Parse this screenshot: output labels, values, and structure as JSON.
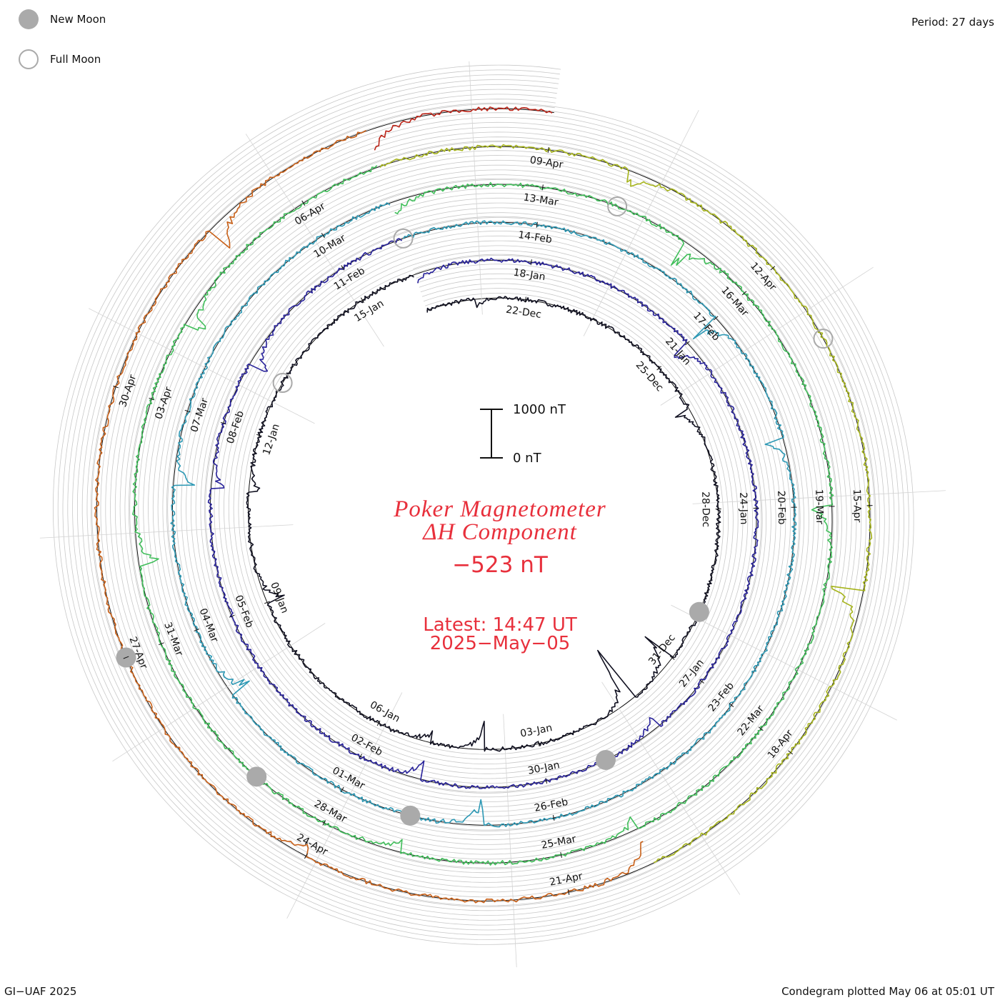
{
  "period_label": "Period: 27 days",
  "legend": {
    "new_moon": "New Moon",
    "full_moon": "Full Moon",
    "new_moon_color": "#aaaaaa",
    "full_moon_color": "#aaaaaa"
  },
  "title": {
    "line1": "Poker Magnetometer",
    "line2": "ΔH Component",
    "value": "−523 nT",
    "latest": "Latest: 14:47 UT",
    "date": "2025−May−05",
    "color": "#e8303c"
  },
  "scale_bar": {
    "top_label": "1000 nT",
    "bottom_label": "0 nT"
  },
  "footer": {
    "left": "GI−UAF 2025",
    "right": "Condegram plotted May 06 at 05:01 UT"
  },
  "chart_data": {
    "type": "line",
    "style": "condegram spiral",
    "period_days": 27,
    "start_date": "2024-12-20",
    "latest_date": "2025-05-05",
    "latest_time": "14:47 UT",
    "latest_value_nT": -523,
    "units": "nT",
    "scale_nT": 1000,
    "grid": true,
    "date_ticks": [
      "22-Dec",
      "25-Dec",
      "28-Dec",
      "31-Dec",
      "03-Jan",
      "06-Jan",
      "09-Jan",
      "12-Jan",
      "15-Jan",
      "18-Jan",
      "21-Jan",
      "24-Jan",
      "27-Jan",
      "30-Jan",
      "02-Feb",
      "05-Feb",
      "08-Feb",
      "11-Feb",
      "14-Feb",
      "17-Feb",
      "20-Feb",
      "23-Feb",
      "26-Feb",
      "01-Mar",
      "04-Mar",
      "07-Mar",
      "10-Mar",
      "13-Mar",
      "16-Mar",
      "19-Mar",
      "22-Mar",
      "25-Mar",
      "28-Mar",
      "31-Mar",
      "03-Apr",
      "06-Apr",
      "09-Apr",
      "12-Apr",
      "15-Apr",
      "18-Apr",
      "21-Apr",
      "24-Apr",
      "27-Apr",
      "30-Apr"
    ],
    "new_moon_dates": [
      "2024-12-30",
      "2025-01-29",
      "2025-02-28",
      "2025-03-29",
      "2025-04-27"
    ],
    "full_moon_dates": [
      "2025-01-13",
      "2025-02-12",
      "2025-03-14",
      "2025-04-13"
    ],
    "series": [
      {
        "color": "#101020",
        "day_range": [
          0,
          27
        ]
      },
      {
        "color": "#28229a",
        "day_range": [
          27,
          54
        ]
      },
      {
        "color": "#2c98b4",
        "day_range": [
          54,
          81
        ]
      },
      {
        "color": "#40be5a",
        "day_range": [
          81,
          108
        ]
      },
      {
        "color": "#a6b41c",
        "day_range": [
          108,
          121
        ]
      },
      {
        "color": "#c86018",
        "day_range": [
          121,
          135
        ]
      },
      {
        "color": "#bb2418",
        "day_range": [
          135,
          137
        ]
      }
    ],
    "disturbances": [
      {
        "date": "2024-12-21",
        "min_nT": -200
      },
      {
        "date": "2024-12-26",
        "min_nT": -300
      },
      {
        "date": "2024-12-31",
        "min_nT": -700
      },
      {
        "date": "2025-01-01",
        "min_nT": -1400
      },
      {
        "date": "2025-01-04",
        "min_nT": -600
      },
      {
        "date": "2025-01-05",
        "min_nT": -300
      },
      {
        "date": "2025-01-09",
        "min_nT": -400
      },
      {
        "date": "2025-01-11",
        "min_nT": -300
      },
      {
        "date": "2025-01-16",
        "min_nT": -200
      },
      {
        "date": "2025-01-21",
        "min_nT": -500
      },
      {
        "date": "2025-01-28",
        "min_nT": -300
      },
      {
        "date": "2025-02-01",
        "min_nT": -400
      },
      {
        "date": "2025-02-07",
        "min_nT": -300
      },
      {
        "date": "2025-02-09",
        "min_nT": -500
      },
      {
        "date": "2025-02-17",
        "min_nT": -600
      },
      {
        "date": "2025-02-19",
        "min_nT": -400
      },
      {
        "date": "2025-02-27",
        "min_nT": -600
      },
      {
        "date": "2025-03-03",
        "min_nT": -500
      },
      {
        "date": "2025-03-06",
        "min_nT": -400
      },
      {
        "date": "2025-03-11",
        "min_nT": -400
      },
      {
        "date": "2025-03-15",
        "min_nT": -700
      },
      {
        "date": "2025-03-19",
        "min_nT": -500
      },
      {
        "date": "2025-03-24",
        "min_nT": -300
      },
      {
        "date": "2025-03-27",
        "min_nT": -300
      },
      {
        "date": "2025-04-01",
        "min_nT": -400
      },
      {
        "date": "2025-04-04",
        "min_nT": -500
      },
      {
        "date": "2025-04-10",
        "min_nT": -400
      },
      {
        "date": "2025-04-16",
        "min_nT": -700
      },
      {
        "date": "2025-04-20",
        "min_nT": -500
      },
      {
        "date": "2025-04-24",
        "min_nT": -300
      },
      {
        "date": "2025-05-02",
        "min_nT": -600
      },
      {
        "date": "2025-05-04",
        "min_nT": -500
      }
    ]
  }
}
